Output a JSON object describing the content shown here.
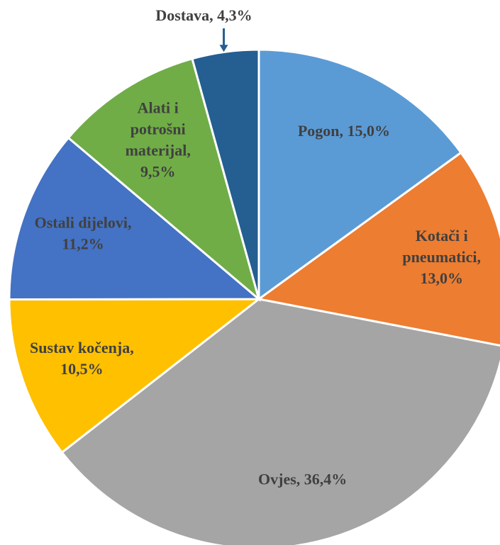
{
  "chart_data": {
    "type": "pie",
    "labels": [
      "Pogon, 15,0%",
      "Kotači i\npneumatici,\n13,0%",
      "Ovjes, 36,4%",
      "Sustav kočenja,\n10,5%",
      "Ostali dijelovi,\n11,2%",
      "Alati i\npotrošni\nmaterijal,\n9,5%",
      "Dostava, 4,3%"
    ],
    "values": [
      15.0,
      13.0,
      36.4,
      10.5,
      11.2,
      9.5,
      4.3
    ],
    "colors": [
      "#5b9bd5",
      "#ed7d31",
      "#a5a5a5",
      "#ffc000",
      "#4472c4",
      "#70ad47",
      "#255e91"
    ]
  }
}
